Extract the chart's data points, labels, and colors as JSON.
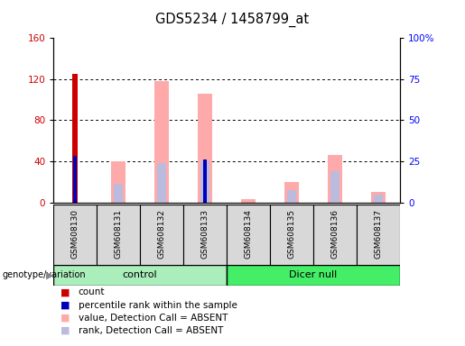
{
  "title": "GDS5234 / 1458799_at",
  "samples": [
    "GSM608130",
    "GSM608131",
    "GSM608132",
    "GSM608133",
    "GSM608134",
    "GSM608135",
    "GSM608136",
    "GSM608137"
  ],
  "count": [
    125,
    0,
    0,
    0,
    0,
    0,
    0,
    0
  ],
  "percentile_rank": [
    45,
    0,
    0,
    42,
    0,
    0,
    0,
    0
  ],
  "value_absent": [
    0,
    40,
    118,
    106,
    3,
    20,
    46,
    10
  ],
  "rank_absent": [
    0,
    18,
    38,
    40,
    0,
    12,
    30,
    8
  ],
  "ylim_left": [
    0,
    160
  ],
  "ylim_right": [
    0,
    100
  ],
  "yticks_left": [
    0,
    40,
    80,
    120,
    160
  ],
  "yticks_right": [
    0,
    25,
    50,
    75,
    100
  ],
  "yticklabels_right": [
    "0",
    "25",
    "50",
    "75",
    "100%"
  ],
  "color_count": "#cc0000",
  "color_rank": "#0000bb",
  "color_value_absent": "#ffaaaa",
  "color_rank_absent": "#bbbbdd",
  "color_control_bg": "#aaeebb",
  "color_dicer_bg": "#44ee66",
  "legend_items": [
    "count",
    "percentile rank within the sample",
    "value, Detection Call = ABSENT",
    "rank, Detection Call = ABSENT"
  ],
  "legend_colors": [
    "#cc0000",
    "#0000bb",
    "#ffaaaa",
    "#bbbbdd"
  ]
}
